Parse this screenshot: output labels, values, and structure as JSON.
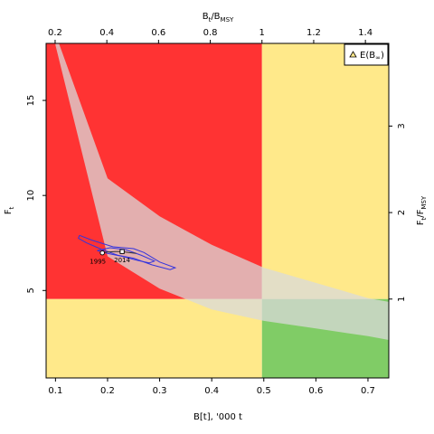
{
  "chart_data": {
    "type": "scatter",
    "xlabel": "B[t], '000 t",
    "ylabel": "F",
    "ylabel_sub": "t",
    "top_label": "B",
    "top_label_sub": "t",
    "top_label_mid": "/B",
    "top_label_sub2": "MSY",
    "right_label": "F",
    "right_label_sub": "t",
    "right_label_mid": "/F",
    "right_label_sub2": "MSY",
    "x_range": [
      0.082,
      0.74
    ],
    "y_range": [
      0.4,
      18.0
    ],
    "x_ticks": [
      {
        "v": 0.1,
        "label": "0.1"
      },
      {
        "v": 0.2,
        "label": "0.2"
      },
      {
        "v": 0.3,
        "label": "0.3"
      },
      {
        "v": 0.4,
        "label": "0.4"
      },
      {
        "v": 0.5,
        "label": "0.5"
      },
      {
        "v": 0.6,
        "label": "0.6"
      },
      {
        "v": 0.7,
        "label": "0.7"
      }
    ],
    "y_ticks": [
      {
        "v": 5,
        "label": "5"
      },
      {
        "v": 10,
        "label": "10"
      },
      {
        "v": 15,
        "label": "15"
      }
    ],
    "top_ticks": [
      {
        "v": 0.2,
        "label": "0.2"
      },
      {
        "v": 0.4,
        "label": "0.4"
      },
      {
        "v": 0.6,
        "label": "0.6"
      },
      {
        "v": 0.8,
        "label": "0.8"
      },
      {
        "v": 1,
        "label": "1"
      },
      {
        "v": 1.2,
        "label": "1.2"
      },
      {
        "v": 1.4,
        "label": "1.4"
      }
    ],
    "right_ticks": [
      {
        "v": 1,
        "label": "1"
      },
      {
        "v": 2,
        "label": "2"
      },
      {
        "v": 3,
        "label": "3"
      }
    ],
    "bmsy": 0.4965,
    "fmsy": 4.55,
    "zones": [
      {
        "name": "overfished-overfishing",
        "color": "#ff3333"
      },
      {
        "name": "overfished-no-overfishing",
        "color": "#ffe98a"
      },
      {
        "name": "healthy-overfishing",
        "color": "#ffe98a"
      },
      {
        "name": "healthy-no-overfishing",
        "color": "#80cc66"
      }
    ],
    "band": {
      "upper": [
        [
          0.1,
          18.5
        ],
        [
          0.2,
          10.9
        ],
        [
          0.3,
          8.9
        ],
        [
          0.4,
          7.4
        ],
        [
          0.5,
          6.2
        ],
        [
          0.6,
          5.4
        ],
        [
          0.7,
          4.6
        ],
        [
          0.74,
          4.4
        ]
      ],
      "lower": [
        [
          0.1,
          17.9
        ],
        [
          0.2,
          6.8
        ],
        [
          0.3,
          5.1
        ],
        [
          0.4,
          4.0
        ],
        [
          0.5,
          3.4
        ],
        [
          0.6,
          3.0
        ],
        [
          0.7,
          2.6
        ],
        [
          0.74,
          2.4
        ]
      ],
      "color": "#d9d9d9"
    },
    "contour": {
      "outer": [
        [
          0.146,
          7.9
        ],
        [
          0.17,
          7.65
        ],
        [
          0.21,
          7.3
        ],
        [
          0.25,
          7.2
        ],
        [
          0.27,
          7.0
        ],
        [
          0.3,
          6.5
        ],
        [
          0.33,
          6.2
        ],
        [
          0.32,
          6.1
        ],
        [
          0.285,
          6.35
        ],
        [
          0.25,
          6.7
        ],
        [
          0.22,
          6.85
        ],
        [
          0.19,
          7.15
        ],
        [
          0.16,
          7.5
        ],
        [
          0.144,
          7.75
        ],
        [
          0.146,
          7.9
        ]
      ],
      "inner": [
        [
          0.18,
          7.1
        ],
        [
          0.205,
          7.25
        ],
        [
          0.235,
          7.15
        ],
        [
          0.265,
          6.85
        ],
        [
          0.29,
          6.55
        ],
        [
          0.28,
          6.45
        ],
        [
          0.255,
          6.6
        ],
        [
          0.228,
          6.8
        ],
        [
          0.2,
          6.95
        ],
        [
          0.18,
          7.1
        ]
      ],
      "color": "#3333dd"
    },
    "trajectory": [
      [
        0.19,
        6.98
      ],
      [
        0.2,
        7.02
      ],
      [
        0.215,
        7.05
      ],
      [
        0.228,
        7.05
      ],
      [
        0.24,
        7.0
      ],
      [
        0.255,
        6.95
      ]
    ],
    "start_point": {
      "x": 0.19,
      "y": 6.98,
      "label": "1995"
    },
    "end_point": {
      "x": 0.228,
      "y": 7.05,
      "label": "2014"
    },
    "legend": {
      "symbol": "triangle",
      "label_main": "E(B",
      "label_sub": "∞",
      "label_end": ")",
      "position": "top-right"
    }
  }
}
